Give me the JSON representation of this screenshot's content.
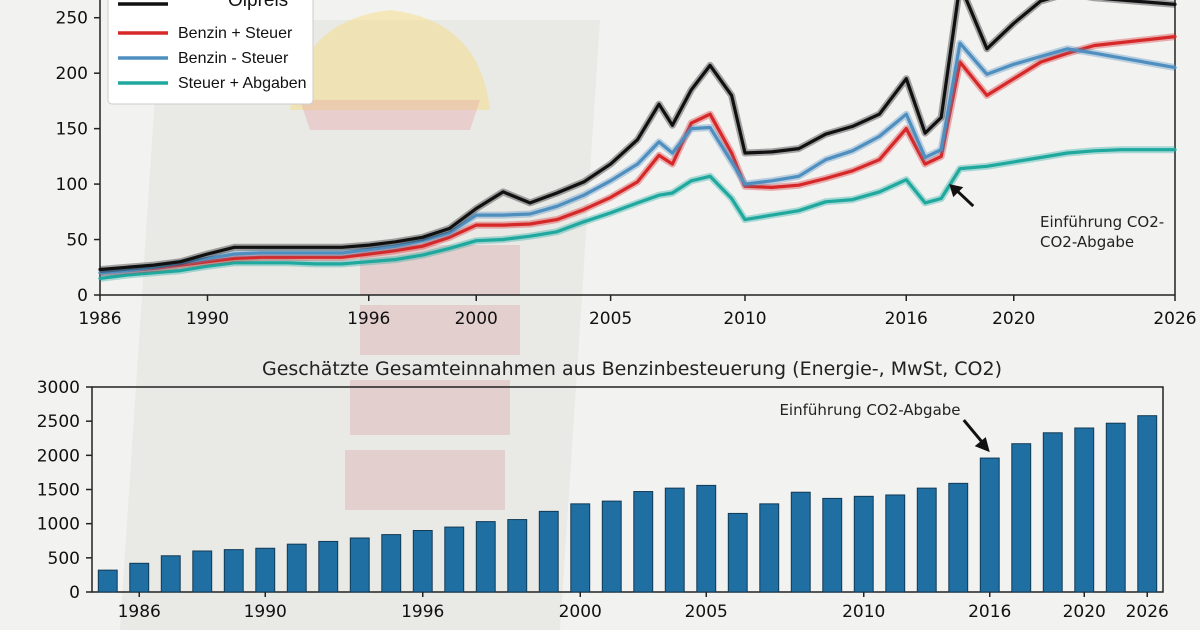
{
  "chart_data": [
    {
      "type": "line",
      "title": "",
      "xlabel": "",
      "ylabel": "",
      "xlim": [
        1986,
        2026
      ],
      "ylim": [
        0,
        275
      ],
      "x_ticks": [
        "1986",
        "1990",
        "1996",
        "2000",
        "2005",
        "2010",
        "2016",
        "2020",
        "2026"
      ],
      "y_ticks": [
        "0",
        "50",
        "100",
        "150",
        "200",
        "250"
      ],
      "legend_position": "top-left",
      "series": [
        {
          "name": "Ölpreis",
          "color": "#111111",
          "points": [
            [
              1986,
              23
            ],
            [
              1987,
              25
            ],
            [
              1988,
              27
            ],
            [
              1989,
              30
            ],
            [
              1990,
              37
            ],
            [
              1991,
              43
            ],
            [
              1992,
              43
            ],
            [
              1993,
              43
            ],
            [
              1994,
              43
            ],
            [
              1995,
              43
            ],
            [
              1996,
              45
            ],
            [
              1997,
              48
            ],
            [
              1998,
              52
            ],
            [
              1999,
              60
            ],
            [
              2000,
              78
            ],
            [
              2001,
              93
            ],
            [
              2002,
              83
            ],
            [
              2003,
              92
            ],
            [
              2004,
              102
            ],
            [
              2005,
              118
            ],
            [
              2006,
              140
            ],
            [
              2006.8,
              172
            ],
            [
              2007.3,
              153
            ],
            [
              2008,
              185
            ],
            [
              2008.7,
              207
            ],
            [
              2009.5,
              180
            ],
            [
              2010,
              128
            ],
            [
              2011,
              129
            ],
            [
              2012,
              132
            ],
            [
              2013,
              145
            ],
            [
              2014,
              152
            ],
            [
              2015,
              163
            ],
            [
              2016,
              195
            ],
            [
              2016.7,
              146
            ],
            [
              2017.3,
              160
            ],
            [
              2018,
              280
            ],
            [
              2019,
              222
            ],
            [
              2020,
              245
            ],
            [
              2021,
              265
            ],
            [
              2022,
              272
            ],
            [
              2023,
              268
            ],
            [
              2026,
              262
            ]
          ]
        },
        {
          "name": "Benzin + Steuer",
          "color": "#d62828",
          "points": [
            [
              1986,
              20
            ],
            [
              1987,
              22
            ],
            [
              1988,
              24
            ],
            [
              1989,
              27
            ],
            [
              1990,
              30
            ],
            [
              1991,
              33
            ],
            [
              1992,
              34
            ],
            [
              1993,
              34
            ],
            [
              1994,
              34
            ],
            [
              1995,
              34
            ],
            [
              1996,
              37
            ],
            [
              1997,
              40
            ],
            [
              1998,
              44
            ],
            [
              1999,
              52
            ],
            [
              2000,
              63
            ],
            [
              2001,
              63
            ],
            [
              2002,
              64
            ],
            [
              2003,
              68
            ],
            [
              2004,
              77
            ],
            [
              2005,
              88
            ],
            [
              2006,
              102
            ],
            [
              2006.8,
              126
            ],
            [
              2007.3,
              118
            ],
            [
              2008,
              155
            ],
            [
              2008.7,
              163
            ],
            [
              2009.5,
              128
            ],
            [
              2010,
              98
            ],
            [
              2011,
              97
            ],
            [
              2012,
              99
            ],
            [
              2013,
              105
            ],
            [
              2014,
              112
            ],
            [
              2015,
              122
            ],
            [
              2016,
              150
            ],
            [
              2016.7,
              118
            ],
            [
              2017.3,
              125
            ],
            [
              2018,
              210
            ],
            [
              2019,
              180
            ],
            [
              2020,
              195
            ],
            [
              2021,
              210
            ],
            [
              2022,
              218
            ],
            [
              2023,
              225
            ],
            [
              2026,
              233
            ]
          ]
        },
        {
          "name": "Benzin - Steuer",
          "color": "#4f8fc0",
          "points": [
            [
              1986,
              20
            ],
            [
              1987,
              22
            ],
            [
              1988,
              25
            ],
            [
              1989,
              29
            ],
            [
              1990,
              33
            ],
            [
              1991,
              37
            ],
            [
              1992,
              38
            ],
            [
              1993,
              38
            ],
            [
              1994,
              38
            ],
            [
              1995,
              38
            ],
            [
              1996,
              41
            ],
            [
              1997,
              44
            ],
            [
              1998,
              49
            ],
            [
              1999,
              56
            ],
            [
              2000,
              72
            ],
            [
              2001,
              72
            ],
            [
              2002,
              73
            ],
            [
              2003,
              80
            ],
            [
              2004,
              90
            ],
            [
              2005,
              103
            ],
            [
              2006,
              118
            ],
            [
              2006.8,
              138
            ],
            [
              2007.3,
              128
            ],
            [
              2008,
              150
            ],
            [
              2008.7,
              151
            ],
            [
              2009.5,
              120
            ],
            [
              2010,
              100
            ],
            [
              2011,
              103
            ],
            [
              2012,
              107
            ],
            [
              2013,
              122
            ],
            [
              2014,
              130
            ],
            [
              2015,
              143
            ],
            [
              2016,
              163
            ],
            [
              2016.7,
              124
            ],
            [
              2017.3,
              131
            ],
            [
              2018,
              227
            ],
            [
              2019,
              199
            ],
            [
              2020,
              208
            ],
            [
              2021,
              215
            ],
            [
              2022,
              222
            ],
            [
              2023,
              218
            ],
            [
              2026,
              205
            ]
          ]
        },
        {
          "name": "Steuer + Abgaben",
          "color": "#1fa89e",
          "points": [
            [
              1986,
              15
            ],
            [
              1987,
              18
            ],
            [
              1988,
              20
            ],
            [
              1989,
              22
            ],
            [
              1990,
              26
            ],
            [
              1991,
              29
            ],
            [
              1992,
              29
            ],
            [
              1993,
              29
            ],
            [
              1994,
              28
            ],
            [
              1995,
              28
            ],
            [
              1996,
              30
            ],
            [
              1997,
              32
            ],
            [
              1998,
              36
            ],
            [
              1999,
              42
            ],
            [
              2000,
              49
            ],
            [
              2001,
              50
            ],
            [
              2002,
              53
            ],
            [
              2003,
              57
            ],
            [
              2004,
              66
            ],
            [
              2005,
              74
            ],
            [
              2006,
              83
            ],
            [
              2006.8,
              90
            ],
            [
              2007.3,
              92
            ],
            [
              2008,
              103
            ],
            [
              2008.7,
              107
            ],
            [
              2009.5,
              87
            ],
            [
              2010,
              68
            ],
            [
              2011,
              72
            ],
            [
              2012,
              76
            ],
            [
              2013,
              84
            ],
            [
              2014,
              86
            ],
            [
              2015,
              93
            ],
            [
              2016,
              104
            ],
            [
              2016.7,
              83
            ],
            [
              2017.3,
              87
            ],
            [
              2018,
              114
            ],
            [
              2019,
              116
            ],
            [
              2020,
              120
            ],
            [
              2021,
              124
            ],
            [
              2022,
              128
            ],
            [
              2023,
              130
            ],
            [
              2024,
              131
            ],
            [
              2026,
              131
            ]
          ]
        }
      ],
      "annotation": {
        "text_lines": [
          "Einführung CO2-",
          "CO2-Abgabe"
        ],
        "arrow_x": 2017.6,
        "arrow_y": 100
      }
    },
    {
      "type": "bar",
      "title": "Geschätzte Gesamteinnahmen aus Benzinbesteuerung (Energie-, MwSt, CO2)",
      "xlabel": "",
      "ylabel": "",
      "ylim": [
        0,
        3000
      ],
      "x_ticks": [
        "1986",
        "1990",
        "1996",
        "2000",
        "2005",
        "2010",
        "2016",
        "2020",
        "2026"
      ],
      "y_ticks": [
        "0",
        "500",
        "1000",
        "1500",
        "2000",
        "2500",
        "3000"
      ],
      "bar_color": "#1f6fa3",
      "values": [
        320,
        420,
        530,
        600,
        620,
        640,
        700,
        740,
        790,
        840,
        900,
        950,
        1030,
        1060,
        1180,
        1290,
        1330,
        1470,
        1520,
        1560,
        1150,
        1290,
        1460,
        1370,
        1400,
        1420,
        1520,
        1590,
        1960,
        2170,
        2330,
        2400,
        2470,
        2580
      ],
      "annotation": {
        "text": "Einführung CO2-Abgabe",
        "bar_index": 28
      }
    }
  ]
}
